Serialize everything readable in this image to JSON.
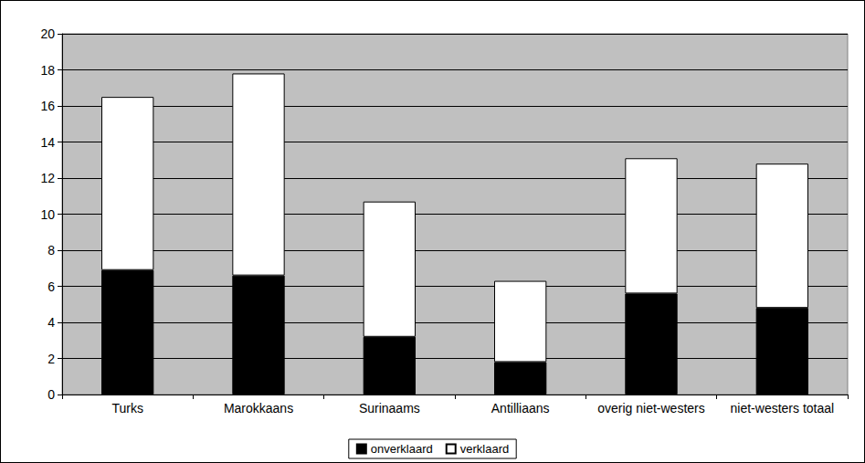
{
  "chart_data": {
    "type": "bar",
    "stacked": true,
    "grid": true,
    "legend": "bottom",
    "categories": [
      "Turks",
      "Marokkaans",
      "Surinaams",
      "Antilliaans",
      "overig niet-westers",
      "niet-westers totaal"
    ],
    "series": [
      {
        "name": "onverklaard",
        "color": "#000000",
        "values": [
          6.9,
          6.6,
          3.2,
          1.8,
          5.6,
          4.8
        ]
      },
      {
        "name": "verklaard",
        "color": "#ffffff",
        "values": [
          9.6,
          11.2,
          7.5,
          4.5,
          7.5,
          8.0
        ]
      }
    ],
    "ylim": [
      0,
      20
    ],
    "yticks": [
      0,
      2,
      4,
      6,
      8,
      10,
      12,
      14,
      16,
      18,
      20
    ]
  }
}
